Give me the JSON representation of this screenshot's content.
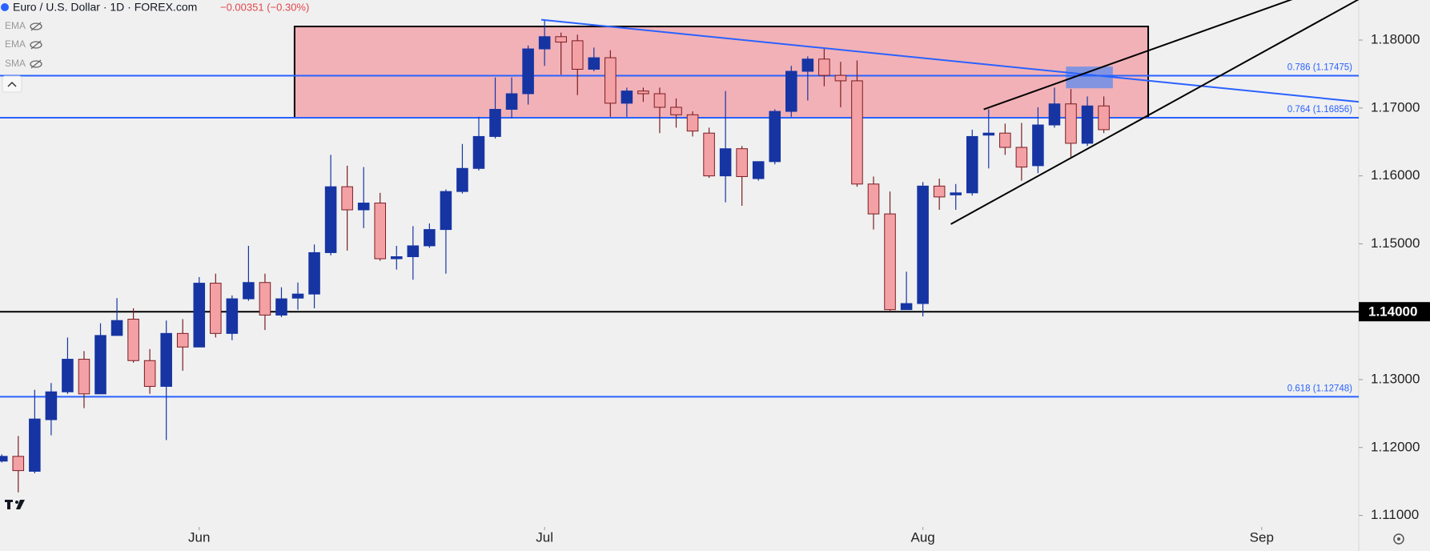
{
  "chart_data": {
    "type": "candlestick",
    "title": "Euro / U.S. Dollar · 1D · FOREX.com",
    "change_label": "−0.00351 (−0.30%)",
    "indicators": [
      "EMA",
      "EMA",
      "SMA"
    ],
    "open": [
      1.118,
      1.1187,
      1.1165,
      1.1241,
      1.1282,
      1.133,
      1.1279,
      1.1365,
      1.1389,
      1.1328,
      1.129,
      1.1368,
      1.1348,
      1.1442,
      1.1368,
      1.1419,
      1.1443,
      1.1395,
      1.142,
      1.1426,
      1.1487,
      1.1584,
      1.155,
      1.156,
      1.1478,
      1.1481,
      1.1497,
      1.1521,
      1.1577,
      1.1611,
      1.1658,
      1.1698,
      1.1721,
      1.1787,
      1.1805,
      1.1799,
      1.1757,
      1.1774,
      1.1707,
      1.1725,
      1.1721,
      1.1701,
      1.169,
      1.1663,
      1.16,
      1.164,
      1.1596,
      1.1621,
      1.1695,
      1.1754,
      1.1772,
      1.1748,
      1.174,
      1.1588,
      1.1544,
      1.1403,
      1.1412,
      1.1585,
      1.1572,
      1.1575,
      1.166,
      1.1663,
      1.1642,
      1.1615,
      1.1675,
      1.1706,
      1.1648,
      1.1703
    ],
    "high": [
      1.119,
      1.1217,
      1.1285,
      1.1295,
      1.1362,
      1.1342,
      1.1383,
      1.142,
      1.1405,
      1.1345,
      1.1387,
      1.1389,
      1.1451,
      1.1456,
      1.1424,
      1.1497,
      1.1456,
      1.1436,
      1.1443,
      1.1499,
      1.1631,
      1.1615,
      1.1613,
      1.1575,
      1.1497,
      1.1526,
      1.153,
      1.158,
      1.1647,
      1.1687,
      1.1745,
      1.1745,
      1.1792,
      1.183,
      1.1811,
      1.1808,
      1.1789,
      1.1785,
      1.173,
      1.173,
      1.173,
      1.1714,
      1.1695,
      1.1671,
      1.1725,
      1.1644,
      1.1621,
      1.1698,
      1.1762,
      1.1776,
      1.1788,
      1.1768,
      1.177,
      1.1599,
      1.1577,
      1.1459,
      1.1591,
      1.1596,
      1.1588,
      1.1668,
      1.1698,
      1.1677,
      1.1678,
      1.1701,
      1.173,
      1.1728,
      1.1717,
      1.1717
    ],
    "low": [
      1.1178,
      1.1134,
      1.1162,
      1.1218,
      1.1279,
      1.1258,
      1.1279,
      1.1365,
      1.1325,
      1.1279,
      1.1211,
      1.1313,
      1.1348,
      1.1362,
      1.1358,
      1.1416,
      1.1373,
      1.1392,
      1.1403,
      1.1405,
      1.1483,
      1.149,
      1.1523,
      1.1475,
      1.1462,
      1.1447,
      1.1494,
      1.1456,
      1.1574,
      1.1608,
      1.1655,
      1.1685,
      1.1705,
      1.1762,
      1.1749,
      1.1719,
      1.1754,
      1.1687,
      1.1687,
      1.1709,
      1.1663,
      1.1671,
      1.1658,
      1.1597,
      1.1561,
      1.1556,
      1.1593,
      1.1617,
      1.1687,
      1.1711,
      1.1732,
      1.1701,
      1.1584,
      1.1521,
      1.14,
      1.1403,
      1.1393,
      1.155,
      1.155,
      1.1571,
      1.1611,
      1.1631,
      1.1593,
      1.1604,
      1.1671,
      1.1628,
      1.1644,
      1.1663
    ],
    "close": [
      1.1187,
      1.1166,
      1.1242,
      1.1282,
      1.133,
      1.1279,
      1.1365,
      1.1387,
      1.1328,
      1.129,
      1.1368,
      1.1348,
      1.1442,
      1.1368,
      1.1419,
      1.1443,
      1.1395,
      1.1419,
      1.1426,
      1.1487,
      1.1584,
      1.155,
      1.156,
      1.1478,
      1.1481,
      1.1497,
      1.1521,
      1.1577,
      1.1611,
      1.1658,
      1.1698,
      1.1721,
      1.1787,
      1.1805,
      1.1797,
      1.1757,
      1.1774,
      1.1707,
      1.1725,
      1.1721,
      1.1701,
      1.169,
      1.1666,
      1.16,
      1.164,
      1.1599,
      1.1621,
      1.1695,
      1.1754,
      1.1772,
      1.1748,
      1.174,
      1.1588,
      1.1544,
      1.1403,
      1.1412,
      1.1585,
      1.1569,
      1.1575,
      1.1658,
      1.1663,
      1.1642,
      1.1613,
      1.1675,
      1.1706,
      1.1648,
      1.1703,
      1.1668
    ],
    "up_color": "#1635a3",
    "down_color": "#f4a1a6",
    "down_border": "#7a1d22",
    "xlim": [
      -0.11,
      82.5
    ],
    "xticks": [
      {
        "value": 12,
        "label": "Jun"
      },
      {
        "value": 33,
        "label": "Jul"
      },
      {
        "value": 56,
        "label": "Aug"
      },
      {
        "value": 76.6,
        "label": "Sep"
      }
    ],
    "ylim": [
      1.1083,
      1.1859
    ],
    "yticks": [
      {
        "value": 1.11,
        "label": "1.11000"
      },
      {
        "value": 1.12,
        "label": "1.12000"
      },
      {
        "value": 1.13,
        "label": "1.13000"
      },
      {
        "value": 1.15,
        "label": "1.15000"
      },
      {
        "value": 1.16,
        "label": "1.16000"
      },
      {
        "value": 1.17,
        "label": "1.17000"
      },
      {
        "value": 1.18,
        "label": "1.18000"
      }
    ],
    "levels": [
      {
        "value": 1.17475,
        "label": "0.786 (1.17475)",
        "color": "#2962ff"
      },
      {
        "value": 1.16856,
        "label": "0.764 (1.16856)",
        "color": "#2962ff"
      },
      {
        "value": 1.12748,
        "label": "0.618 (1.12748)",
        "color": "#2962ff"
      },
      {
        "value": 1.14,
        "label": "1.14000",
        "color": "#000000"
      }
    ],
    "rectangles": [
      {
        "x": [
          17.8,
          69.7
        ],
        "y": [
          1.182,
          1.16856
        ],
        "color": "#f2b1b7"
      },
      {
        "x": [
          64.7,
          67.55
        ],
        "y": [
          1.1761,
          1.1729
        ],
        "color": "#6f8fe8"
      }
    ],
    "trendlines": [
      {
        "points": [
          [
            32.8,
            1.183
          ],
          [
            82.5,
            1.1709
          ]
        ],
        "color": "#2962ff"
      },
      {
        "points": [
          [
            59.7,
            1.1698
          ],
          [
            82.5,
            1.1895
          ]
        ],
        "color": "#000000"
      },
      {
        "points": [
          [
            57.7,
            1.1529
          ],
          [
            82.5,
            1.186
          ]
        ],
        "color": "#000000"
      }
    ]
  }
}
